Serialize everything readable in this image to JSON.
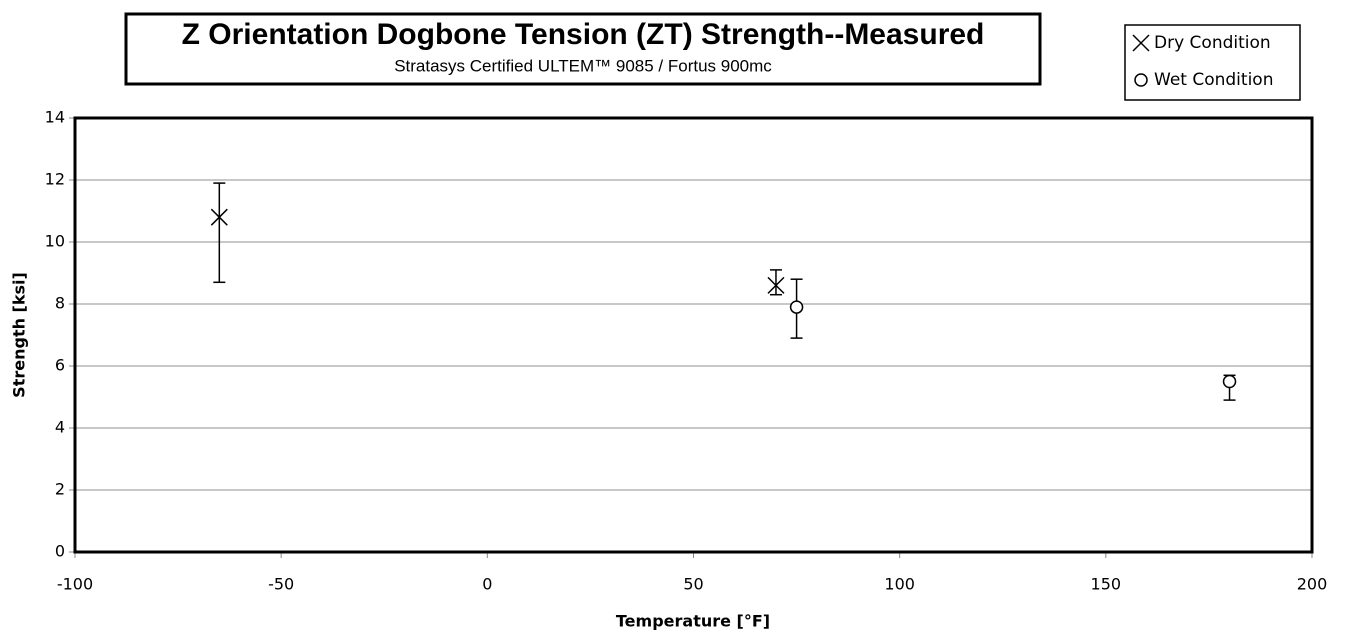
{
  "chart_data": {
    "type": "scatter",
    "title": "Z Orientation Dogbone Tension (ZT) Strength--Measured",
    "subtitle": "Stratasys Certified  ULTEM™ 9085 / Fortus 900mc",
    "x_label": "Temperature [°F]",
    "y_label": "Strength [ksi]",
    "xlim": [
      -100,
      200
    ],
    "xticks": [
      -100,
      -50,
      0,
      50,
      100,
      150,
      200
    ],
    "ylim": [
      0,
      14
    ],
    "yticks": [
      0,
      2,
      4,
      6,
      8,
      10,
      12,
      14
    ],
    "grid": true,
    "legend": "top-right",
    "series": [
      {
        "name": "Dry Condition",
        "marker": "x",
        "color": "#000000",
        "x": [
          -65,
          70
        ],
        "values": [
          10.8,
          8.6
        ],
        "upper": [
          11.9,
          9.1
        ],
        "lower": [
          8.7,
          8.3
        ]
      },
      {
        "name": "Wet Condition",
        "marker": "o",
        "color": "#000000",
        "x": [
          75,
          180
        ],
        "values": [
          7.9,
          5.5
        ],
        "upper": [
          8.8,
          5.7
        ],
        "lower": [
          6.9,
          4.9
        ]
      }
    ]
  }
}
